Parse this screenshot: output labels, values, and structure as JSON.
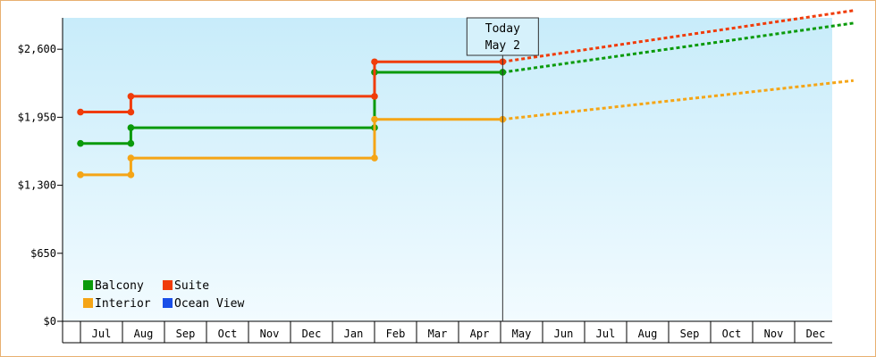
{
  "chart_data": {
    "type": "line",
    "style": "step",
    "y_tick_labels": [
      "$0",
      "$650",
      "$1,300",
      "$1,950",
      "$2,600"
    ],
    "ylim": [
      0,
      2900
    ],
    "months": [
      "Jul",
      "Aug",
      "Sep",
      "Oct",
      "Nov",
      "Dec",
      "Jan",
      "Feb",
      "Mar",
      "Apr",
      "May",
      "Jun",
      "Jul",
      "Aug",
      "Sep",
      "Oct",
      "Nov",
      "Dec"
    ],
    "today_marker": {
      "line1": "Today",
      "line2": "May 2",
      "x": 10.05
    },
    "series": [
      {
        "name": "Balcony",
        "color": "#0a9a0a",
        "history": [
          [
            0,
            1700
          ],
          [
            1.2,
            1700
          ],
          [
            1.2,
            1850
          ],
          [
            7.0,
            1850
          ],
          [
            7.0,
            2380
          ],
          [
            10.05,
            2380
          ]
        ],
        "projection": [
          [
            10.05,
            2380
          ],
          [
            18.4,
            2850
          ]
        ]
      },
      {
        "name": "Suite",
        "color": "#f03c0a",
        "history": [
          [
            0,
            2000
          ],
          [
            1.2,
            2000
          ],
          [
            1.2,
            2150
          ],
          [
            7.0,
            2150
          ],
          [
            7.0,
            2480
          ],
          [
            10.05,
            2480
          ]
        ],
        "projection": [
          [
            10.05,
            2480
          ],
          [
            18.4,
            2970
          ]
        ]
      },
      {
        "name": "Interior",
        "color": "#f5a516",
        "history": [
          [
            0,
            1400
          ],
          [
            1.2,
            1400
          ],
          [
            1.2,
            1560
          ],
          [
            7.0,
            1560
          ],
          [
            7.0,
            1930
          ],
          [
            10.05,
            1930
          ]
        ],
        "projection": [
          [
            10.05,
            1930
          ],
          [
            18.4,
            2300
          ]
        ]
      },
      {
        "name": "Ocean View",
        "color": "#1a4fe8",
        "history": [],
        "projection": []
      }
    ],
    "legend_position": "bottom-left"
  }
}
